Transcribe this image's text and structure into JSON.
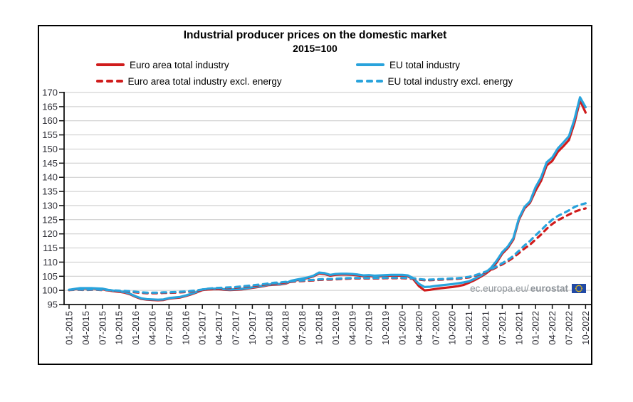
{
  "chart_data": {
    "type": "line",
    "title": "Industrial producer prices on the domestic market",
    "subtitle": "2015=100",
    "ylim": [
      95,
      170
    ],
    "y_ticks": [
      95,
      100,
      105,
      110,
      115,
      120,
      125,
      130,
      135,
      140,
      145,
      150,
      155,
      160,
      165,
      170
    ],
    "x_monthly_points": 94,
    "x_range_text": "01-2015 to 10-2022, monthly",
    "x_tick_labels": [
      "01-2015",
      "04-2015",
      "07-2015",
      "10-2015",
      "01-2016",
      "04-2016",
      "07-2016",
      "10-2016",
      "01-2017",
      "04-2017",
      "07-2017",
      "10-2017",
      "01-2018",
      "04-2018",
      "07-2018",
      "10-2018",
      "01-2019",
      "04-2019",
      "07-2019",
      "10-2019",
      "01-2020",
      "04-2020",
      "07-2020",
      "10-2020",
      "01-2021",
      "04-2021",
      "07-2021",
      "10-2021",
      "01-2022",
      "04-2022",
      "07-2022",
      "10-2022"
    ],
    "grid": "horizontal",
    "legend_position": "top",
    "colors": {
      "euro_area": "#d01c1c",
      "eu": "#29a3dc",
      "grid": "#c9c9c9",
      "axis": "#111111",
      "tick_label": "#2e2e36",
      "watermark": "#8e949a",
      "flag_blue": "#2149a5",
      "flag_star": "#ffcc00"
    },
    "series": [
      {
        "name": "Euro area total industry",
        "color": "#d01c1c",
        "dash": false,
        "values": [
          100.1,
          100.4,
          100.6,
          100.6,
          100.7,
          100.5,
          100.4,
          100.0,
          99.7,
          99.5,
          99.2,
          98.6,
          97.7,
          97.0,
          96.7,
          96.6,
          96.5,
          96.6,
          97.1,
          97.3,
          97.5,
          98.0,
          98.6,
          99.3,
          100.1,
          100.3,
          100.4,
          100.4,
          100.2,
          100.1,
          100.2,
          100.3,
          100.6,
          100.9,
          101.2,
          101.5,
          101.9,
          102.0,
          102.1,
          102.4,
          103.2,
          103.6,
          104.0,
          104.4,
          105.0,
          106.0,
          105.8,
          105.2,
          105.5,
          105.6,
          105.6,
          105.5,
          105.3,
          105.0,
          105.1,
          104.9,
          105.0,
          105.1,
          105.2,
          105.2,
          105.2,
          105.0,
          103.9,
          101.5,
          100.0,
          100.2,
          100.5,
          100.8,
          101.0,
          101.2,
          101.5,
          101.9,
          102.7,
          103.6,
          104.7,
          105.9,
          107.4,
          109.9,
          113.0,
          115.0,
          118.0,
          125.0,
          129.0,
          131.0,
          135.3,
          138.8,
          144.2,
          145.8,
          149.0,
          151.0,
          153.2,
          159.2,
          167.2,
          162.9
        ]
      },
      {
        "name": "EU total industry",
        "color": "#29a3dc",
        "dash": false,
        "values": [
          100.2,
          100.5,
          100.8,
          100.8,
          100.8,
          100.7,
          100.6,
          100.2,
          99.9,
          99.7,
          99.4,
          98.8,
          97.9,
          97.2,
          96.9,
          96.8,
          96.7,
          96.8,
          97.3,
          97.5,
          97.7,
          98.2,
          98.8,
          99.5,
          100.3,
          100.5,
          100.6,
          100.6,
          100.4,
          100.3,
          100.4,
          100.5,
          100.8,
          101.1,
          101.4,
          101.7,
          102.1,
          102.2,
          102.3,
          102.6,
          103.4,
          103.8,
          104.2,
          104.6,
          105.2,
          106.3,
          106.1,
          105.5,
          105.8,
          105.9,
          105.9,
          105.8,
          105.6,
          105.3,
          105.4,
          105.2,
          105.3,
          105.4,
          105.5,
          105.5,
          105.5,
          105.3,
          104.3,
          102.3,
          101.2,
          101.3,
          101.6,
          101.8,
          102.0,
          102.2,
          102.5,
          102.8,
          103.2,
          104.1,
          105.1,
          106.3,
          108.0,
          110.5,
          113.5,
          115.5,
          118.5,
          125.5,
          129.5,
          131.5,
          136.5,
          140.0,
          145.3,
          147.0,
          150.2,
          152.3,
          154.5,
          160.5,
          168.3,
          164.8
        ]
      },
      {
        "name": "Euro area total industry excl. energy",
        "color": "#d01c1c",
        "dash": true,
        "values": [
          100.1,
          100.2,
          100.2,
          100.1,
          100.2,
          100.2,
          100.1,
          100.0,
          99.9,
          99.8,
          99.7,
          99.5,
          99.3,
          99.1,
          99.0,
          99.0,
          99.0,
          99.1,
          99.1,
          99.2,
          99.3,
          99.4,
          99.6,
          99.8,
          100.1,
          100.4,
          100.6,
          100.7,
          100.8,
          100.9,
          101.0,
          101.2,
          101.4,
          101.6,
          101.8,
          102.0,
          102.3,
          102.5,
          102.6,
          102.8,
          103.0,
          103.2,
          103.3,
          103.4,
          103.5,
          103.7,
          103.8,
          103.8,
          103.9,
          104.0,
          104.1,
          104.2,
          104.2,
          104.2,
          104.2,
          104.2,
          104.2,
          104.3,
          104.3,
          104.3,
          104.3,
          104.2,
          104.1,
          103.8,
          103.6,
          103.6,
          103.7,
          103.8,
          103.9,
          104.0,
          104.1,
          104.3,
          104.6,
          105.1,
          105.7,
          106.4,
          107.2,
          108.2,
          109.2,
          110.3,
          111.6,
          113.2,
          114.8,
          116.2,
          118.0,
          119.8,
          121.8,
          123.5,
          124.8,
          125.8,
          126.8,
          127.8,
          128.5,
          129.0
        ]
      },
      {
        "name": "EU total industry excl. energy",
        "color": "#29a3dc",
        "dash": true,
        "values": [
          100.2,
          100.3,
          100.3,
          100.2,
          100.3,
          100.3,
          100.2,
          100.1,
          100.0,
          99.9,
          99.8,
          99.7,
          99.5,
          99.3,
          99.2,
          99.2,
          99.2,
          99.3,
          99.3,
          99.4,
          99.5,
          99.6,
          99.8,
          100.0,
          100.3,
          100.6,
          100.8,
          100.9,
          101.0,
          101.1,
          101.2,
          101.4,
          101.6,
          101.8,
          102.0,
          102.2,
          102.5,
          102.7,
          102.8,
          103.0,
          103.2,
          103.4,
          103.5,
          103.6,
          103.7,
          103.9,
          104.0,
          104.0,
          104.1,
          104.2,
          104.3,
          104.4,
          104.4,
          104.4,
          104.4,
          104.4,
          104.4,
          104.5,
          104.5,
          104.5,
          104.5,
          104.4,
          104.3,
          104.0,
          103.8,
          103.8,
          103.9,
          104.0,
          104.1,
          104.2,
          104.3,
          104.5,
          104.8,
          105.3,
          105.9,
          106.6,
          107.5,
          108.5,
          109.6,
          110.8,
          112.2,
          114.0,
          115.9,
          117.5,
          119.5,
          121.3,
          123.3,
          125.0,
          126.3,
          127.3,
          128.3,
          129.5,
          130.3,
          130.8
        ]
      }
    ],
    "annotations": {
      "watermark_prefix": "ec.europa.eu/",
      "watermark_bold": "eurostat",
      "watermark_flag": "eu-flag-icon"
    }
  }
}
